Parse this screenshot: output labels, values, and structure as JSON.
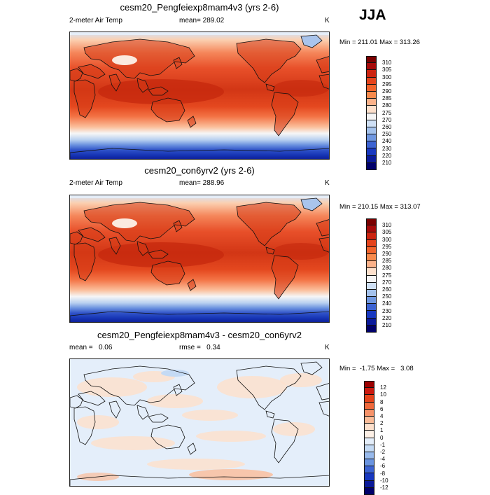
{
  "season": "JJA",
  "panels": [
    {
      "title": "cesm20_Pengfeiexp8mam4v3 (yrs 2-6)",
      "left_label": "2-meter Air Temp",
      "center_label": "mean= 289.02",
      "units": "K",
      "range_text": "Min = 211.01 Max = 313.26",
      "colorbar": {
        "labels": [
          "310",
          "305",
          "300",
          "295",
          "290",
          "285",
          "280",
          "275",
          "270",
          "260",
          "250",
          "240",
          "230",
          "220",
          "210"
        ],
        "colors": [
          "#7a0000",
          "#a60a0a",
          "#cc2410",
          "#e5441c",
          "#f2642c",
          "#f88a4c",
          "#fbb28a",
          "#fde0cc",
          "#f5f5f5",
          "#cfe0f5",
          "#a4c2ec",
          "#6f97e0",
          "#3c63d2",
          "#1838c0",
          "#0a1a9a",
          "#00006a"
        ]
      },
      "map": {
        "type": "temperature"
      }
    },
    {
      "title": "cesm20_con6yrv2 (yrs 2-6)",
      "left_label": "2-meter Air Temp",
      "center_label": "mean= 288.96",
      "units": "K",
      "range_text": "Min = 210.15 Max = 313.07",
      "colorbar": {
        "labels": [
          "310",
          "305",
          "300",
          "295",
          "290",
          "285",
          "280",
          "275",
          "270",
          "260",
          "250",
          "240",
          "230",
          "220",
          "210"
        ],
        "colors": [
          "#7a0000",
          "#a60a0a",
          "#cc2410",
          "#e5441c",
          "#f2642c",
          "#f88a4c",
          "#fbb28a",
          "#fde0cc",
          "#f5f5f5",
          "#cfe0f5",
          "#a4c2ec",
          "#6f97e0",
          "#3c63d2",
          "#1838c0",
          "#0a1a9a",
          "#00006a"
        ]
      },
      "map": {
        "type": "temperature"
      }
    },
    {
      "title": "cesm20_Pengfeiexp8mam4v3 - cesm20_con6yrv2",
      "left_label": "mean =   0.06",
      "center_label": "rmse =   0.34",
      "units": "K",
      "range_text": "Min =  -1.75 Max =   3.08",
      "colorbar": {
        "labels": [
          "12",
          "10",
          "8",
          "6",
          "4",
          "2",
          "1",
          "0",
          "-1",
          "-2",
          "-4",
          "-6",
          "-8",
          "-10",
          "-12"
        ],
        "colors": [
          "#9c0000",
          "#cc1a10",
          "#e5441c",
          "#f06a3c",
          "#f7936a",
          "#fbbc98",
          "#fde0cc",
          "#fdf0e6",
          "#e4eefa",
          "#c4daf4",
          "#98baec",
          "#6a94e0",
          "#3c63d2",
          "#1838c0",
          "#0a1a9a",
          "#00006a"
        ]
      },
      "map": {
        "type": "difference"
      }
    }
  ]
}
